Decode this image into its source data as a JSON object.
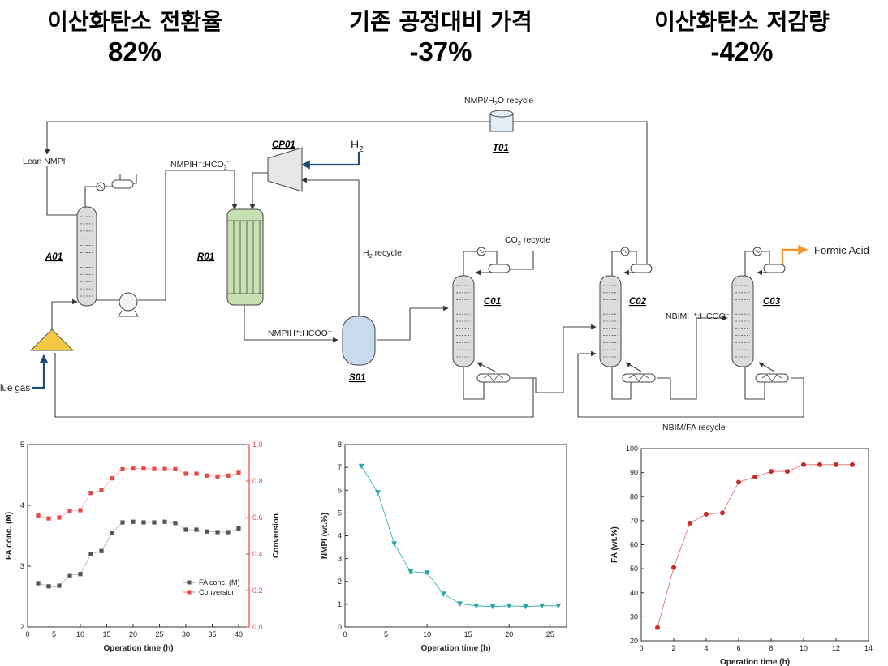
{
  "kpis": [
    {
      "label": "이산화탄소 전환율",
      "value": "82%"
    },
    {
      "label": "기존 공정대비 가격",
      "value": "-37%"
    },
    {
      "label": "이산화탄소 저감량",
      "value": "-42%"
    }
  ],
  "process": {
    "units": {
      "a01": "A01",
      "r01": "R01",
      "cp01": "CP01",
      "t01": "T01",
      "s01": "S01",
      "c01": "C01",
      "c02": "C02",
      "c03": "C03"
    },
    "labels": {
      "lean_nmpi": "Lean NMPI",
      "nmpi_bicarb_main": "NMPIH⁺:HCO",
      "nmpi_bicarb_sub": "3",
      "nmpi_bicarb_sup": "-",
      "nmpi_h2o_a": "NMPI/H",
      "nmpi_h2o_sub": "2",
      "nmpi_h2o_b": "O recycle",
      "h2_main": "H",
      "h2_sub": "2",
      "h2_recycle_a": "H",
      "h2_recycle_sub": "2",
      "h2_recycle_b": " recycle",
      "co2_recycle_a": "CO",
      "co2_recycle_sub": "2",
      "co2_recycle_b": " recycle",
      "formic_acid": "Formic Acid",
      "nmpi_formate": "NMPIH⁺:HCOO⁻",
      "nbim_formate": "NBIMH⁺:HCOO⁻",
      "nbim_fa_recycle": "NBIM/FA recycle",
      "flue_gas": "lue gas"
    },
    "colors": {
      "h2_line": "#1f4e79",
      "product_line": "#f0962c",
      "reactor": "#c6e0b4",
      "separator": "#c9d9f0",
      "absorber_inlet": "#f5c842"
    }
  },
  "chart_data": [
    {
      "type": "scatter",
      "xlabel": "Operation time (h)",
      "ylabel": "FA conc. (M)",
      "y2label": "Conversion",
      "xlim": [
        0,
        42
      ],
      "ylim": [
        2,
        5
      ],
      "y2lim": [
        0,
        1.0
      ],
      "xticks": [
        0,
        5,
        10,
        15,
        20,
        25,
        30,
        35,
        40
      ],
      "yticks": [
        2,
        3,
        4,
        5
      ],
      "y2ticks": [
        "0.0",
        "0.2",
        "0.4",
        "0.6",
        "0.8",
        "1.0"
      ],
      "y2color": "#e8484a",
      "series": [
        {
          "name": "FA conc. (M)",
          "axis": "left",
          "color": "#555555",
          "x": [
            2,
            4,
            6,
            8,
            10,
            12,
            14,
            16,
            18,
            20,
            22,
            24,
            26,
            28,
            30,
            32,
            34,
            36,
            38,
            40
          ],
          "y": [
            2.72,
            2.67,
            2.68,
            2.85,
            2.87,
            3.2,
            3.25,
            3.55,
            3.72,
            3.73,
            3.72,
            3.72,
            3.73,
            3.71,
            3.6,
            3.6,
            3.57,
            3.56,
            3.56,
            3.62
          ]
        },
        {
          "name": "Conversion",
          "axis": "right",
          "color": "#e8484a",
          "x": [
            2,
            4,
            6,
            8,
            10,
            12,
            14,
            16,
            18,
            20,
            22,
            24,
            26,
            28,
            30,
            32,
            34,
            36,
            38,
            40
          ],
          "y": [
            0.61,
            0.595,
            0.6,
            0.635,
            0.64,
            0.735,
            0.75,
            0.815,
            0.865,
            0.868,
            0.868,
            0.866,
            0.866,
            0.865,
            0.84,
            0.84,
            0.83,
            0.825,
            0.83,
            0.845
          ]
        }
      ]
    },
    {
      "type": "line",
      "xlabel": "Operation time (h)",
      "ylabel": "NMPI (wt.%)",
      "xlim": [
        0,
        27
      ],
      "ylim": [
        0,
        8
      ],
      "xticks": [
        0,
        5,
        10,
        15,
        20,
        25
      ],
      "yticks": [
        0,
        1,
        2,
        3,
        4,
        5,
        6,
        7,
        8
      ],
      "series": [
        {
          "color": "#2aa6a6",
          "marker": "triangle-down",
          "x": [
            2,
            4,
            6,
            8,
            10,
            12,
            14,
            16,
            18,
            20,
            22,
            24,
            26
          ],
          "y": [
            7.05,
            5.9,
            3.65,
            2.42,
            2.38,
            1.45,
            1.02,
            0.93,
            0.9,
            0.93,
            0.9,
            0.93,
            0.93
          ]
        }
      ]
    },
    {
      "type": "line",
      "xlabel": "Operation time (h)",
      "ylabel": "FA (wt.%)",
      "xlim": [
        0,
        14
      ],
      "ylim": [
        20,
        100
      ],
      "xticks": [
        0,
        2,
        4,
        6,
        8,
        10,
        12,
        14
      ],
      "yticks": [
        20,
        30,
        40,
        50,
        60,
        70,
        80,
        90,
        100
      ],
      "series": [
        {
          "color": "#cc2b2b",
          "marker": "circle",
          "x": [
            1,
            2,
            3,
            4,
            5,
            6,
            7,
            8,
            9,
            10,
            11,
            12,
            13
          ],
          "y": [
            25.5,
            50.5,
            69,
            72.7,
            73.2,
            86,
            88.2,
            90.5,
            90.5,
            93.3,
            93.3,
            93.3,
            93.3
          ]
        }
      ]
    }
  ]
}
